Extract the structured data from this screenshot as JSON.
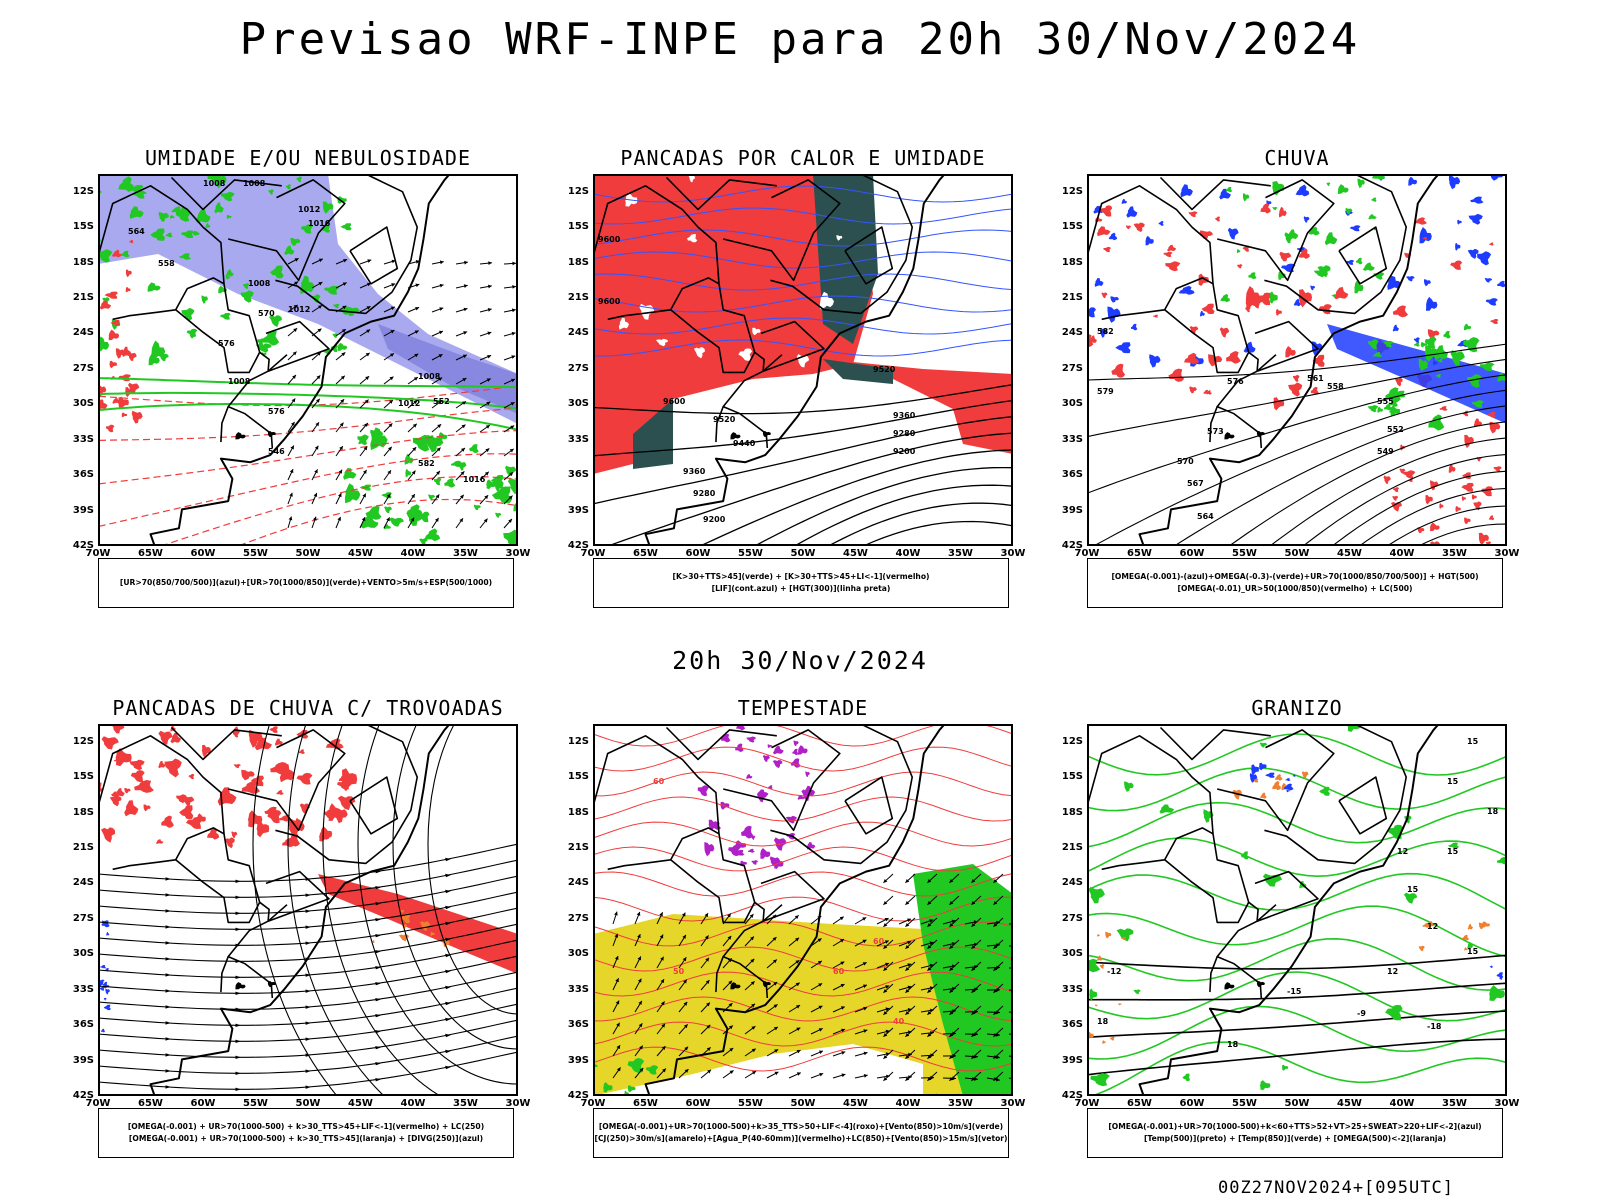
{
  "title": "Previsao WRF-INPE  para 20h 30/Nov/2024",
  "subtitle": "20h 30/Nov/2024",
  "footer": "00Z27NOV2024+[095UTC]",
  "axes": {
    "lat_ticks": [
      "12S",
      "15S",
      "18S",
      "21S",
      "24S",
      "27S",
      "30S",
      "33S",
      "36S",
      "39S",
      "42S"
    ],
    "lon_ticks": [
      "70W",
      "65W",
      "60W",
      "55W",
      "50W",
      "45W",
      "40W",
      "35W",
      "30W"
    ]
  },
  "colors": {
    "blue_shade": "#a9a9ef",
    "red": "#f03c3c",
    "green": "#22c822",
    "dark_teal": "#2c5050",
    "yellow": "#e6d62a",
    "blue": "#1e3cff",
    "purple": "#b020c8",
    "orange": "#f08030"
  },
  "panels": [
    {
      "id": "umidade",
      "title": "UMIDADE E/OU NEBULOSIDADE",
      "legend": [
        "[UR>70(850/700/500)](azul)+[UR>70(1000/850)](verde)+VENTO>5m/s+ESP(500/1000)"
      ],
      "contour_labels": [
        "1008",
        "1008",
        "1012",
        "1016",
        "1008",
        "1012",
        "1008",
        "1012",
        "1016",
        "1008",
        "570",
        "576",
        "564",
        "558",
        "552",
        "546",
        "582",
        "576"
      ]
    },
    {
      "id": "pancadas-calor",
      "title": "PANCADAS POR CALOR E UMIDADE",
      "legend": [
        "[K>30+TTS>45](verde) + [K>30+TTS>45+LI<-1](vermelho)",
        "[LIF](cont.azul) + [HGT(300)](linha preta)"
      ],
      "contour_labels": [
        "9600",
        "9600",
        "9520",
        "9600",
        "9520",
        "9440",
        "9360",
        "9280",
        "9200",
        "9360",
        "9280",
        "9200"
      ]
    },
    {
      "id": "chuva",
      "title": "CHUVA",
      "legend": [
        "[OMEGA(-0.001)-(azul)+OMEGA(-0.3)-(verde)+UR>70(1000/850/700/500)] + HGT(500)",
        "[OMEGA(-0.01)_UR>50(1000/850)(vermelho) + LC(500)"
      ],
      "contour_labels": [
        "582",
        "579",
        "576",
        "573",
        "570",
        "567",
        "564",
        "561",
        "558",
        "555",
        "552",
        "549"
      ]
    },
    {
      "id": "pancadas-trovoadas",
      "title": "PANCADAS DE CHUVA C/ TROVOADAS",
      "legend": [
        "[OMEGA(-0.001) + UR>70(1000-500) + k>30_TTS>45+LIF<-1](vermelho) + LC(250)",
        "[OMEGA(-0.001) + UR>70(1000-500) + k>30_TTS>45](laranja) + [DIVG(250)](azul)"
      ],
      "contour_labels": []
    },
    {
      "id": "tempestade",
      "title": "TEMPESTADE",
      "legend": [
        "[OMEGA(-0.001)+UR>70(1000-500)+k>35_TTS>50+LIF<-4](roxo)+[Vento(850)>10m/s](verde)",
        "[CJ(250)>30m/s](amarelo)+[Agua_P(40-60mm)](vermelho)+LC(850)+[Vento(850)>15m/s](vetor)"
      ],
      "contour_labels": [
        "60",
        "60",
        "50",
        "40",
        "60"
      ]
    },
    {
      "id": "granizo",
      "title": "GRANIZO",
      "legend": [
        "[OMEGA(-0.001)+UR>70(1000-500)+k<60+TTS>52+VT>25+SWEAT>220+LIF<-2](azul)",
        "[Temp(500)](preto) + [Temp(850)](verde) + [OMEGA(500)<-2](laranja)"
      ],
      "contour_labels": [
        "15",
        "15",
        "18",
        "15",
        "12",
        "15",
        "12",
        "15",
        "18",
        "12",
        "18",
        "-9",
        "-12",
        "-15",
        "-18"
      ]
    }
  ]
}
